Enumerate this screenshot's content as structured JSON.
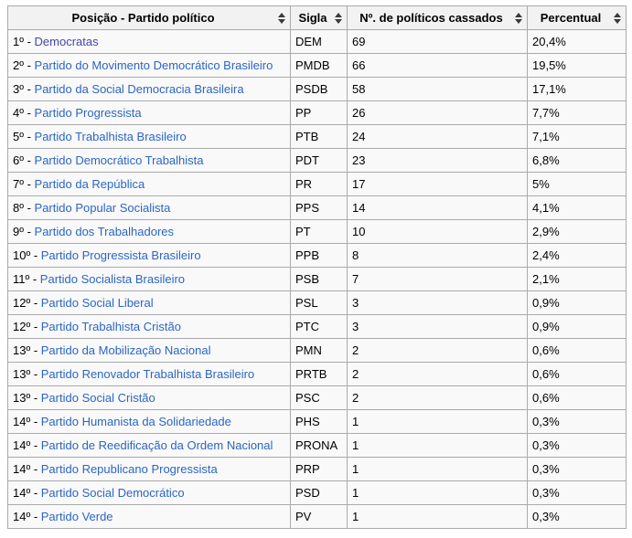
{
  "table": {
    "headers": [
      {
        "label": "Posição - Partido político"
      },
      {
        "label": "Sigla"
      },
      {
        "label": "Nº. de políticos cassados"
      },
      {
        "label": "Percentual"
      }
    ],
    "sort_icon": "sort-both-icon",
    "rows": [
      {
        "position": "1º",
        "party": "Democratas",
        "sigla": "DEM",
        "cassados": "69",
        "percentual": "20,4%",
        "visited": true
      },
      {
        "position": "2º",
        "party": "Partido do Movimento Democrático Brasileiro",
        "sigla": "PMDB",
        "cassados": "66",
        "percentual": "19,5%",
        "visited": false
      },
      {
        "position": "3º",
        "party": "Partido da Social Democracia Brasileira",
        "sigla": "PSDB",
        "cassados": "58",
        "percentual": "17,1%",
        "visited": false
      },
      {
        "position": "4º",
        "party": "Partido Progressista",
        "sigla": "PP",
        "cassados": "26",
        "percentual": "7,7%",
        "visited": false
      },
      {
        "position": "5º",
        "party": "Partido Trabalhista Brasileiro",
        "sigla": "PTB",
        "cassados": "24",
        "percentual": "7,1%",
        "visited": false
      },
      {
        "position": "6º",
        "party": "Partido Democrático Trabalhista",
        "sigla": "PDT",
        "cassados": "23",
        "percentual": "6,8%",
        "visited": false
      },
      {
        "position": "7º",
        "party": "Partido da República",
        "sigla": "PR",
        "cassados": "17",
        "percentual": "5%",
        "visited": false
      },
      {
        "position": "8º",
        "party": "Partido Popular Socialista",
        "sigla": "PPS",
        "cassados": "14",
        "percentual": "4,1%",
        "visited": false
      },
      {
        "position": "9º",
        "party": "Partido dos Trabalhadores",
        "sigla": "PT",
        "cassados": "10",
        "percentual": "2,9%",
        "visited": false
      },
      {
        "position": "10º",
        "party": "Partido Progressista Brasileiro",
        "sigla": "PPB",
        "cassados": "8",
        "percentual": "2,4%",
        "visited": false
      },
      {
        "position": "11º",
        "party": "Partido Socialista Brasileiro",
        "sigla": "PSB",
        "cassados": "7",
        "percentual": "2,1%",
        "visited": false
      },
      {
        "position": "12º",
        "party": "Partido Social Liberal",
        "sigla": "PSL",
        "cassados": "3",
        "percentual": "0,9%",
        "visited": false
      },
      {
        "position": "12º",
        "party": "Partido Trabalhista Cristão",
        "sigla": "PTC",
        "cassados": "3",
        "percentual": "0,9%",
        "visited": false
      },
      {
        "position": "13º",
        "party": "Partido da Mobilização Nacional",
        "sigla": "PMN",
        "cassados": "2",
        "percentual": "0,6%",
        "visited": false
      },
      {
        "position": "13º",
        "party": "Partido Renovador Trabalhista Brasileiro",
        "sigla": "PRTB",
        "cassados": "2",
        "percentual": "0,6%",
        "visited": false
      },
      {
        "position": "13º",
        "party": "Partido Social Cristão",
        "sigla": "PSC",
        "cassados": "2",
        "percentual": "0,6%",
        "visited": false
      },
      {
        "position": "14º",
        "party": "Partido Humanista da Solidariedade",
        "sigla": "PHS",
        "cassados": "1",
        "percentual": "0,3%",
        "visited": false
      },
      {
        "position": "14º",
        "party": "Partido de Reedificação da Ordem Nacional",
        "sigla": "PRONA",
        "cassados": "1",
        "percentual": "0,3%",
        "visited": false
      },
      {
        "position": "14º",
        "party": "Partido Republicano Progressista",
        "sigla": "PRP",
        "cassados": "1",
        "percentual": "0,3%",
        "visited": false
      },
      {
        "position": "14º",
        "party": "Partido Social Democrático",
        "sigla": "PSD",
        "cassados": "1",
        "percentual": "0,3%",
        "visited": false
      },
      {
        "position": "14º",
        "party": "Partido Verde",
        "sigla": "PV",
        "cassados": "1",
        "percentual": "0,3%",
        "visited": false
      }
    ],
    "position_separator": " - "
  },
  "colors": {
    "header_bg": "#f2f2f2",
    "row_bg": "#f9f9f9",
    "border": "#aaaaaa",
    "text": "#000000",
    "link": "#2b66c4",
    "visited_link": "#4646b0",
    "sort_arrow": "#3a3a3a"
  }
}
